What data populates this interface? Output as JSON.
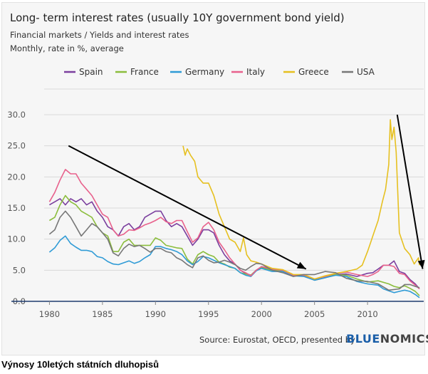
{
  "header": {
    "title": "Long- term interest rates (usually 10Y government bond yield)",
    "subtitle1": "Financial markets / Yields and interest rates",
    "subtitle2": "Monthly, rate in %, average"
  },
  "footer": {
    "source": "Source: Eurostat, OECD, presented by",
    "brand_prefix": "BLUE",
    "brand_suffix": "NOMICS"
  },
  "caption": "Výnosy 10letých státních dluhopisů",
  "chart_data": {
    "type": "line",
    "title": "Long- term interest rates (usually 10Y government bond yield)",
    "xlabel": "",
    "ylabel": "",
    "xlim": [
      1979.5,
      2015.3
    ],
    "ylim": [
      0,
      30
    ],
    "x_ticks": [
      "1980",
      "1985",
      "1990",
      "1995",
      "2000",
      "2005",
      "2010"
    ],
    "y_ticks": [
      "0.0",
      "5.0",
      "10.0",
      "15.0",
      "20.0",
      "25.0",
      "30.0"
    ],
    "grid": true,
    "legend_position": "top",
    "series": [
      {
        "name": "Spain",
        "color": "#7b3f9e",
        "x": [
          1980,
          1980.5,
          1981,
          1981.5,
          1982,
          1982.5,
          1983,
          1983.5,
          1984,
          1984.5,
          1985,
          1985.5,
          1986,
          1986.5,
          1987,
          1987.5,
          1988,
          1988.5,
          1989,
          1989.5,
          1990,
          1990.5,
          1991,
          1991.5,
          1992,
          1992.5,
          1993,
          1993.5,
          1994,
          1994.5,
          1995,
          1995.5,
          1996,
          1996.5,
          1997,
          1997.5,
          1998,
          1998.5,
          1999,
          1999.5,
          2000,
          2001,
          2002,
          2003,
          2004,
          2005,
          2006,
          2007,
          2008,
          2009,
          2010,
          2010.5,
          2011,
          2011.5,
          2012,
          2012.5,
          2013,
          2013.5,
          2014,
          2014.5,
          2014.9
        ],
        "values": [
          15.5,
          16,
          16.5,
          15.5,
          16.5,
          16,
          16.5,
          15.5,
          16,
          14.5,
          13.5,
          12,
          11.5,
          10.5,
          12,
          12.5,
          11.5,
          12,
          13.5,
          14,
          14.5,
          14.5,
          13,
          12,
          12.5,
          12,
          10.5,
          9,
          10,
          11.5,
          11.5,
          11,
          9,
          7.5,
          6.5,
          6,
          5,
          4.5,
          4.2,
          5,
          5.5,
          5.2,
          5,
          4.1,
          4.1,
          3.4,
          3.8,
          4.3,
          4.4,
          4,
          4.5,
          4.6,
          5.2,
          5.8,
          5.8,
          6.5,
          4.8,
          4.5,
          3.5,
          2.8,
          2
        ]
      },
      {
        "name": "France",
        "color": "#8bbd3c",
        "x": [
          1980,
          1980.5,
          1981,
          1981.5,
          1982,
          1982.5,
          1983,
          1983.5,
          1984,
          1984.5,
          1985,
          1985.5,
          1986,
          1986.5,
          1987,
          1987.5,
          1988,
          1988.5,
          1989,
          1989.5,
          1990,
          1990.5,
          1991,
          1991.5,
          1992,
          1992.5,
          1993,
          1993.5,
          1994,
          1994.5,
          1995,
          1995.5,
          1996,
          1996.5,
          1997,
          1997.5,
          1998,
          1998.5,
          1999,
          1999.5,
          2000,
          2001,
          2002,
          2003,
          2004,
          2005,
          2006,
          2007,
          2008,
          2009,
          2010,
          2011,
          2012,
          2012.5,
          2013,
          2013.5,
          2014,
          2014.5,
          2014.9
        ],
        "values": [
          13,
          13.5,
          15.5,
          17,
          16,
          15.5,
          14.5,
          14,
          13.5,
          12,
          11,
          10.5,
          8,
          8,
          9.5,
          10,
          9,
          9,
          9,
          9,
          10.2,
          9.8,
          9,
          8.8,
          8.6,
          8.5,
          6.8,
          6,
          7.5,
          8,
          7.5,
          7.2,
          6.3,
          6,
          5.5,
          5.3,
          4.6,
          4.4,
          4.2,
          5,
          5.4,
          5,
          4.9,
          4.1,
          4.1,
          3.4,
          3.8,
          4.3,
          4.2,
          3.6,
          3.1,
          3.3,
          2.8,
          2.4,
          2.2,
          2.5,
          2.1,
          1.6,
          0.9
        ]
      },
      {
        "name": "Germany",
        "color": "#2f9bd6",
        "x": [
          1980,
          1980.5,
          1981,
          1981.5,
          1982,
          1982.5,
          1983,
          1983.5,
          1984,
          1984.5,
          1985,
          1985.5,
          1986,
          1986.5,
          1987,
          1987.5,
          1988,
          1988.5,
          1989,
          1989.5,
          1990,
          1990.5,
          1991,
          1991.5,
          1992,
          1992.5,
          1993,
          1993.5,
          1994,
          1994.5,
          1995,
          1995.5,
          1996,
          1996.5,
          1997,
          1997.5,
          1998,
          1998.5,
          1999,
          1999.5,
          2000,
          2001,
          2002,
          2003,
          2004,
          2005,
          2006,
          2007,
          2008,
          2009,
          2010,
          2011,
          2011.5,
          2012,
          2012.5,
          2013,
          2013.5,
          2014,
          2014.5,
          2014.9
        ],
        "values": [
          7.9,
          8.6,
          9.8,
          10.5,
          9.3,
          8.7,
          8.2,
          8.2,
          8,
          7.2,
          7,
          6.4,
          6,
          5.9,
          6.2,
          6.5,
          6.1,
          6.4,
          7,
          7.5,
          8.8,
          8.8,
          8.5,
          8.3,
          8,
          7.5,
          6.5,
          5.9,
          6.4,
          7.2,
          7,
          6.6,
          6.2,
          5.9,
          5.6,
          5.3,
          4.6,
          4.2,
          4,
          4.9,
          5.3,
          4.8,
          4.8,
          4.1,
          4,
          3.4,
          3.8,
          4.2,
          4,
          3.2,
          2.8,
          2.6,
          2,
          1.7,
          1.4,
          1.6,
          1.8,
          1.6,
          1.1,
          0.6
        ]
      },
      {
        "name": "Italy",
        "color": "#e8618c",
        "x": [
          1980,
          1980.5,
          1981,
          1981.5,
          1982,
          1982.5,
          1983,
          1983.5,
          1984,
          1984.5,
          1985,
          1985.5,
          1986,
          1986.5,
          1987,
          1987.5,
          1988,
          1988.5,
          1989,
          1989.5,
          1990,
          1990.5,
          1991,
          1991.5,
          1992,
          1992.5,
          1993,
          1993.5,
          1994,
          1994.5,
          1995,
          1995.5,
          1996,
          1996.5,
          1997,
          1997.5,
          1998,
          1998.5,
          1999,
          1999.5,
          2000,
          2001,
          2002,
          2003,
          2004,
          2005,
          2006,
          2007,
          2008,
          2009,
          2010,
          2010.5,
          2011,
          2011.5,
          2012,
          2012.5,
          2013,
          2013.5,
          2014,
          2014.5,
          2014.9
        ],
        "values": [
          16,
          17.5,
          19.5,
          21.2,
          20.5,
          20.5,
          19,
          18,
          17,
          15.5,
          14,
          13.5,
          11.5,
          10.5,
          10.8,
          11.5,
          11.4,
          11.8,
          12.3,
          12.6,
          13,
          13.5,
          12.8,
          12.5,
          13,
          13,
          11.2,
          9.5,
          10.2,
          12,
          12.7,
          11.5,
          9.5,
          8.3,
          7,
          6,
          5,
          4.6,
          4.1,
          5,
          5.6,
          5.2,
          5,
          4.2,
          4.2,
          3.6,
          4,
          4.5,
          4.7,
          4.3,
          4,
          4.3,
          4.8,
          5.8,
          5.8,
          5.6,
          4.5,
          4.3,
          3.3,
          2.6,
          2
        ]
      },
      {
        "name": "Greece",
        "color": "#e6c020",
        "x": [
          1992.6,
          1992.8,
          1993,
          1993.3,
          1993.7,
          1994,
          1994.5,
          1995,
          1995.5,
          1996,
          1996.5,
          1997,
          1997.5,
          1998,
          1998.3,
          1998.6,
          1999,
          1999.5,
          2000,
          2001,
          2002,
          2003,
          2004,
          2005,
          2006,
          2007,
          2008,
          2009,
          2009.5,
          2010,
          2010.3,
          2010.6,
          2011,
          2011.4,
          2011.7,
          2012,
          2012.15,
          2012.3,
          2012.5,
          2012.7,
          2013,
          2013.5,
          2014,
          2014.4,
          2014.8,
          2014.9
        ],
        "values": [
          25,
          23.5,
          24.5,
          23.5,
          22.5,
          20,
          19,
          19,
          17,
          14,
          12,
          10,
          9.5,
          8,
          10.2,
          7.5,
          6.5,
          6.3,
          6,
          5.3,
          5.1,
          4.3,
          4.3,
          3.6,
          4.1,
          4.5,
          4.8,
          5.2,
          5.8,
          8,
          9.5,
          11,
          13,
          16,
          18,
          22,
          29.2,
          26,
          28,
          24,
          11,
          8.5,
          7.5,
          6,
          7,
          5.8
        ]
      },
      {
        "name": "USA",
        "color": "#777777",
        "x": [
          1980,
          1980.5,
          1981,
          1981.5,
          1982,
          1982.5,
          1983,
          1983.5,
          1984,
          1984.5,
          1985,
          1985.5,
          1986,
          1986.5,
          1987,
          1987.5,
          1988,
          1988.5,
          1989,
          1989.5,
          1990,
          1990.5,
          1991,
          1991.5,
          1992,
          1992.5,
          1993,
          1993.5,
          1994,
          1994.5,
          1995,
          1995.5,
          1996,
          1996.5,
          1997,
          1997.5,
          1998,
          1998.5,
          1999,
          1999.5,
          2000,
          2001,
          2002,
          2003,
          2004,
          2005,
          2006,
          2007,
          2008,
          2009,
          2010,
          2011,
          2012,
          2013,
          2013.5,
          2014,
          2014.5,
          2014.9
        ],
        "values": [
          10.8,
          11.5,
          13.5,
          14.5,
          13.5,
          12,
          10.5,
          11.5,
          12.5,
          12,
          11,
          10,
          7.8,
          7.3,
          8.5,
          9.2,
          8.8,
          9,
          8.5,
          7.9,
          8.5,
          8.5,
          8,
          7.8,
          7,
          6.6,
          5.9,
          5.4,
          7,
          7.3,
          6.6,
          6.2,
          6.3,
          6.6,
          6.3,
          5.9,
          5.3,
          5,
          5.6,
          6.1,
          6,
          5,
          4.6,
          4,
          4.3,
          4.3,
          4.8,
          4.6,
          3.7,
          3.3,
          3.2,
          2.8,
          1.8,
          2,
          2.7,
          2.7,
          2.4,
          2.2
        ]
      }
    ],
    "annotations": [
      {
        "type": "arrow",
        "from": [
          1981.8,
          25
        ],
        "to": [
          2004.2,
          5.2
        ]
      },
      {
        "type": "arrow",
        "from": [
          2012.8,
          30
        ],
        "to": [
          2015.2,
          5.2
        ]
      }
    ]
  }
}
